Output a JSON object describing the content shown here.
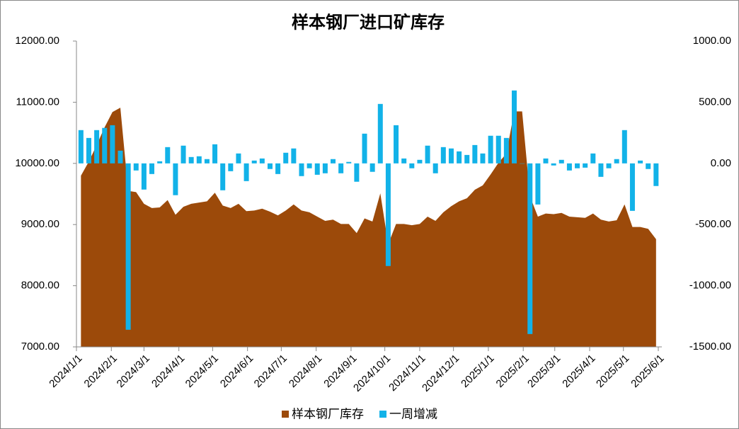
{
  "chart_data": {
    "type": "area-bar",
    "title": "样本钢厂进口矿库存",
    "x": [
      "2024/1/5",
      "2024/1/12",
      "2024/1/19",
      "2024/1/26",
      "2024/2/2",
      "2024/2/9",
      "2024/2/16",
      "2024/2/23",
      "2024/3/1",
      "2024/3/8",
      "2024/3/15",
      "2024/3/22",
      "2024/3/29",
      "2024/4/5",
      "2024/4/12",
      "2024/4/19",
      "2024/4/26",
      "2024/5/3",
      "2024/5/10",
      "2024/5/17",
      "2024/5/24",
      "2024/5/31",
      "2024/6/7",
      "2024/6/14",
      "2024/6/21",
      "2024/6/28",
      "2024/7/5",
      "2024/7/12",
      "2024/7/19",
      "2024/7/26",
      "2024/8/2",
      "2024/8/9",
      "2024/8/16",
      "2024/8/23",
      "2024/8/30",
      "2024/9/6",
      "2024/9/13",
      "2024/9/20",
      "2024/9/27",
      "2024/10/4",
      "2024/10/11",
      "2024/10/18",
      "2024/10/25",
      "2024/11/1",
      "2024/11/8",
      "2024/11/15",
      "2024/11/22",
      "2024/11/29",
      "2024/12/6",
      "2024/12/13",
      "2024/12/20",
      "2024/12/27",
      "2025/1/3",
      "2025/1/10",
      "2025/1/17",
      "2025/1/24",
      "2025/1/31",
      "2025/2/7",
      "2025/2/14",
      "2025/2/21",
      "2025/2/28",
      "2025/3/7",
      "2025/3/14",
      "2025/3/21",
      "2025/3/28",
      "2025/4/4",
      "2025/4/11",
      "2025/4/18",
      "2025/4/25",
      "2025/5/2",
      "2025/5/9",
      "2025/5/16",
      "2025/5/23",
      "2025/5/30"
    ],
    "series": [
      {
        "name": "样本钢厂库存",
        "color": "#9c4a0a",
        "kind": "area",
        "values": [
          9800,
          10030,
          10300,
          10590,
          10840,
          10910,
          9550,
          9530,
          9340,
          9270,
          9280,
          9400,
          9160,
          9290,
          9340,
          9360,
          9380,
          9520,
          9310,
          9270,
          9340,
          9220,
          9230,
          9260,
          9210,
          9150,
          9230,
          9330,
          9230,
          9200,
          9130,
          9060,
          9080,
          9010,
          9010,
          8860,
          9100,
          9050,
          9510,
          8680,
          9010,
          9010,
          8990,
          9010,
          9130,
          9060,
          9200,
          9300,
          9380,
          9430,
          9570,
          9640,
          9820,
          10010,
          10160,
          10850,
          10850,
          9460,
          9130,
          9180,
          9170,
          9190,
          9130,
          9120,
          9110,
          9180,
          9080,
          9050,
          9070,
          9330,
          8960,
          8960,
          8930,
          8760
        ]
      },
      {
        "name": "一周增减",
        "color": "#12b2e8",
        "kind": "bar",
        "axis": "y2",
        "values": [
          272,
          208,
          272,
          290,
          312,
          104,
          -1360,
          -58,
          -214,
          -87,
          17,
          133,
          -260,
          145,
          52,
          58,
          35,
          156,
          -220,
          -64,
          81,
          -145,
          23,
          40,
          -46,
          -87,
          87,
          122,
          -104,
          -40,
          -93,
          -81,
          35,
          -81,
          12,
          -150,
          243,
          -69,
          486,
          -839,
          312,
          40,
          -40,
          29,
          145,
          -81,
          133,
          122,
          98,
          69,
          150,
          81,
          226,
          226,
          208,
          596,
          0,
          -1395,
          -336,
          40,
          -17,
          29,
          -58,
          -40,
          -35,
          81,
          -110,
          -40,
          35,
          272,
          -388,
          23,
          -46,
          -185
        ]
      }
    ],
    "xlim": [
      "2024/1/1",
      "2025/6/1"
    ],
    "xticks": [
      "2024/1/1",
      "2024/2/1",
      "2024/3/1",
      "2024/4/1",
      "2024/5/1",
      "2024/6/1",
      "2024/7/1",
      "2024/8/1",
      "2024/9/1",
      "2024/10/1",
      "2024/11/1",
      "2024/12/1",
      "2025/1/1",
      "2025/2/1",
      "2025/3/1",
      "2025/4/1",
      "2025/5/1",
      "2025/6/1"
    ],
    "ylim": [
      7000,
      12000
    ],
    "yticks": [
      {
        "value": 7000,
        "label": "7000.00"
      },
      {
        "value": 8000,
        "label": "8000.00"
      },
      {
        "value": 9000,
        "label": "9000.00"
      },
      {
        "value": 10000,
        "label": "10000.00"
      },
      {
        "value": 11000,
        "label": "11000.00"
      },
      {
        "value": 12000,
        "label": "12000.00"
      }
    ],
    "y2lim": [
      -1500,
      1000
    ],
    "y2ticks": [
      {
        "value": -1500,
        "label": "-1500.00"
      },
      {
        "value": -1000,
        "label": "-1000.00"
      },
      {
        "value": -500,
        "label": "-500.00"
      },
      {
        "value": 0,
        "label": "0.00"
      },
      {
        "value": 500,
        "label": "500.00"
      },
      {
        "value": 1000,
        "label": "1000.00"
      }
    ],
    "legend": "bottom"
  }
}
